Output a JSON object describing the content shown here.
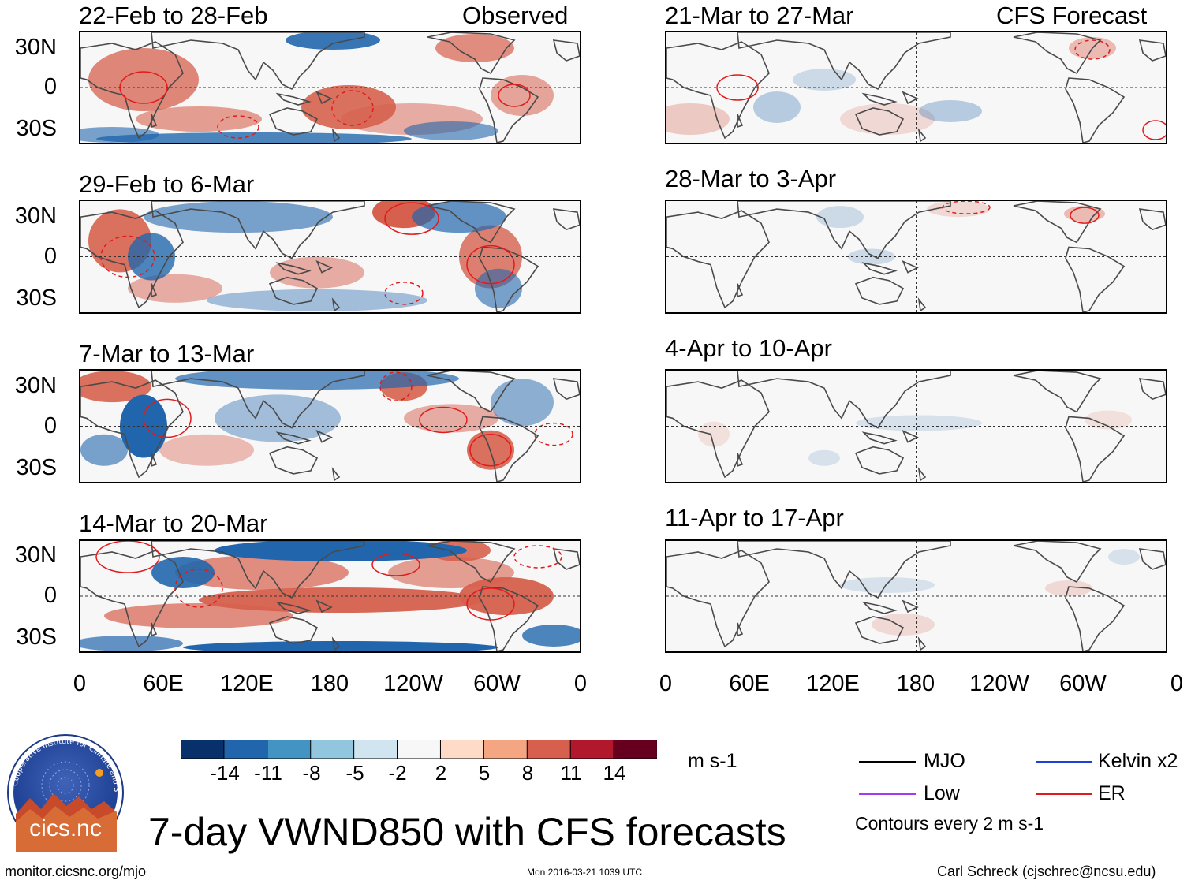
{
  "observed_label": "Observed",
  "forecast_label": "CFS Forecast",
  "observed_panels": [
    "22-Feb to 28-Feb",
    "29-Feb to 6-Mar",
    "7-Mar to 13-Mar",
    "14-Mar to 20-Mar"
  ],
  "forecast_panels": [
    "21-Mar to 27-Mar",
    "28-Mar to 3-Apr",
    "4-Apr to 10-Apr",
    "11-Apr to 17-Apr"
  ],
  "lat_labels": [
    "30N",
    "0",
    "30S"
  ],
  "lon_labels": [
    "0",
    "60E",
    "120E",
    "180",
    "120W",
    "60W",
    "0"
  ],
  "colorbar": {
    "labels": [
      "-14",
      "-11",
      "-8",
      "-5",
      "-2",
      "2",
      "5",
      "8",
      "11",
      "14"
    ],
    "colors": [
      "#08306b",
      "#2166ac",
      "#4393c3",
      "#92c5de",
      "#d1e5f0",
      "#f7f7f7",
      "#fddbc7",
      "#f4a582",
      "#d6604d",
      "#b2182b",
      "#67001f"
    ],
    "units": "m s-1"
  },
  "legend": {
    "items": [
      {
        "label": "MJO",
        "color": "#000000"
      },
      {
        "label": "Kelvin x2",
        "color": "#1f3fd6"
      },
      {
        "label": "Low",
        "color": "#a23cf0"
      },
      {
        "label": "ER",
        "color": "#e31a1c"
      }
    ],
    "note": "Contours every 2 m s-1"
  },
  "logo_text": "cics.nc",
  "logo_ring_text": "Cooperative Institute for Climate and Satellites",
  "main_title": "7-day VWND850 with CFS forecasts",
  "footer": {
    "url": "monitor.cicsnc.org/mjo",
    "timestamp": "Mon 2016-03-21 1039 UTC",
    "author": "Carl Schreck (cjschrec@ncsu.edu)"
  }
}
